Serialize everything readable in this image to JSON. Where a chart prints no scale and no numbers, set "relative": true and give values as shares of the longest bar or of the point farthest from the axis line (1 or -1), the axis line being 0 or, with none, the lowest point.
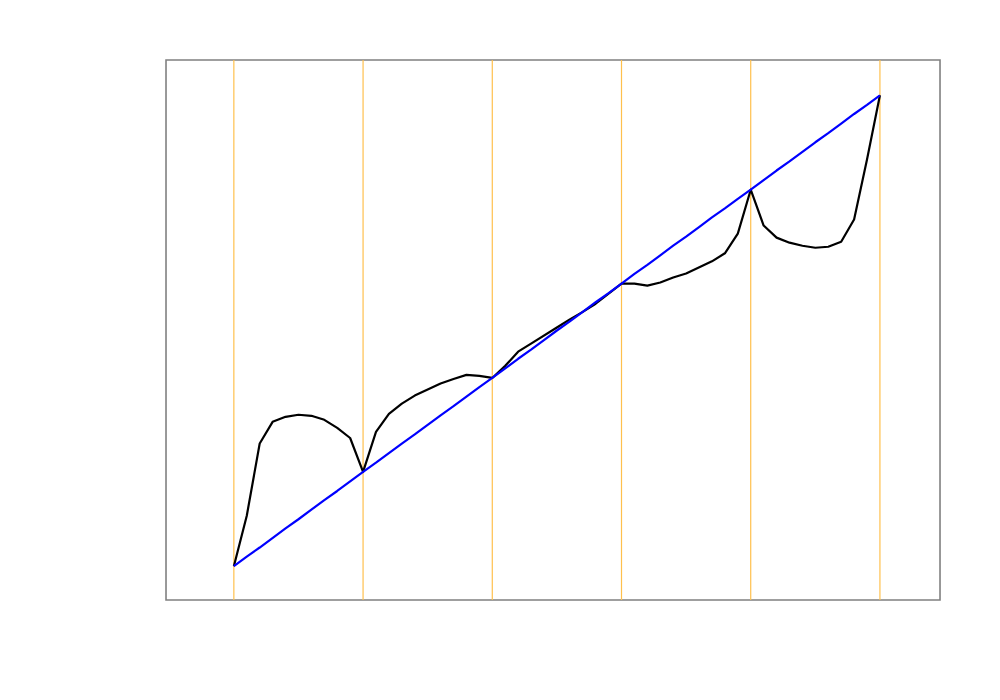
{
  "chart_data": {
    "type": "line",
    "relative": true,
    "categories": [
      null,
      null,
      null,
      null,
      null,
      null,
      null,
      null,
      null,
      null,
      null,
      null,
      null,
      null,
      null,
      null,
      null,
      null,
      null,
      null,
      null,
      null,
      null,
      null,
      null,
      null,
      null,
      null,
      null,
      null,
      null,
      null,
      null,
      null,
      null,
      null,
      null,
      null,
      null,
      null,
      null,
      null,
      null,
      null,
      null,
      null,
      null,
      null,
      null,
      null,
      null
    ],
    "series": [
      {
        "color": "#000000",
        "values": [
          0.067,
          0.167,
          0.31,
          0.353,
          0.363,
          0.367,
          0.365,
          0.357,
          0.341,
          0.321,
          0.254,
          0.333,
          0.369,
          0.389,
          0.405,
          0.417,
          0.429,
          0.438,
          0.446,
          0.444,
          0.44,
          0.464,
          0.492,
          0.508,
          0.524,
          0.54,
          0.556,
          0.571,
          0.587,
          0.607,
          0.627,
          0.627,
          0.623,
          0.629,
          0.639,
          0.647,
          0.659,
          0.671,
          0.687,
          0.726,
          0.813,
          0.742,
          0.718,
          0.708,
          0.702,
          0.698,
          0.7,
          0.71,
          0.754,
          0.873,
          1.0
        ]
      },
      {
        "color": "#0000ff",
        "values": [
          0.067,
          0.086,
          0.104,
          0.123,
          0.142,
          0.16,
          0.179,
          0.198,
          0.216,
          0.235,
          0.254,
          0.272,
          0.291,
          0.31,
          0.328,
          0.347,
          0.366,
          0.384,
          0.403,
          0.422,
          0.44,
          0.459,
          0.478,
          0.496,
          0.515,
          0.534,
          0.552,
          0.571,
          0.59,
          0.608,
          0.627,
          0.646,
          0.664,
          0.683,
          0.702,
          0.72,
          0.739,
          0.758,
          0.776,
          0.795,
          0.813,
          0.832,
          0.851,
          0.869,
          0.888,
          0.907,
          0.925,
          0.944,
          0.963,
          0.981,
          1.0
        ]
      }
    ],
    "grid": "x"
  }
}
